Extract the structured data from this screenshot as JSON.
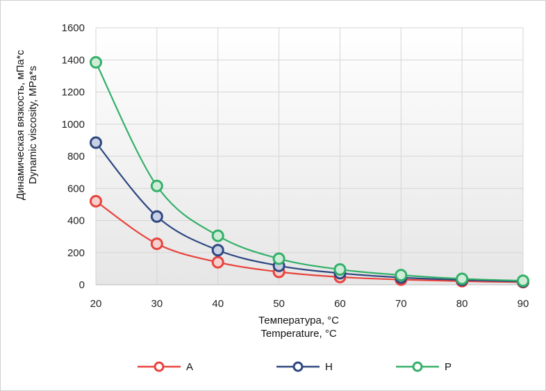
{
  "chart_data": {
    "type": "line",
    "x": [
      20,
      30,
      40,
      50,
      60,
      70,
      80,
      90
    ],
    "series": [
      {
        "name": "A",
        "color": "#e8423c",
        "values": [
          520,
          255,
          140,
          80,
          48,
          32,
          22,
          16
        ]
      },
      {
        "name": "H",
        "color": "#2e4780",
        "values": [
          885,
          425,
          215,
          118,
          72,
          45,
          30,
          20
        ]
      },
      {
        "name": "P",
        "color": "#33b068",
        "values": [
          1385,
          615,
          305,
          162,
          95,
          60,
          37,
          25
        ]
      }
    ],
    "xlim": [
      20,
      90
    ],
    "ylim": [
      0,
      1600
    ],
    "xticks": [
      "20",
      "30",
      "40",
      "50",
      "60",
      "70",
      "80",
      "90"
    ],
    "yticks": [
      "0",
      "200",
      "400",
      "600",
      "800",
      "1000",
      "1200",
      "1400",
      "1600"
    ],
    "xlabel": [
      "Температура, °C",
      "Temperature, °C"
    ],
    "ylabel": [
      "Динамическая вязкость, мПа*с",
      "Dynamic viscosity, MPa*s"
    ],
    "grid": true,
    "legend": "bottom"
  }
}
